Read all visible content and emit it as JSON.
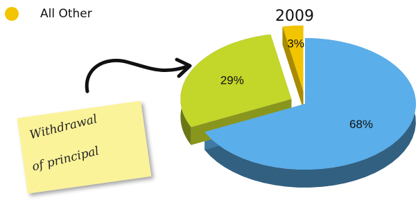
{
  "chart_data": {
    "type": "pie",
    "title": "2009",
    "categories": [
      null,
      null,
      "All Other"
    ],
    "values": [
      68,
      29,
      3
    ],
    "value_labels": [
      "68%",
      "29%",
      "3%"
    ],
    "colors": [
      "#5aaeea",
      "#c3d62a",
      "#f2c500"
    ],
    "annotation": [
      "Withdrawal",
      "of principal"
    ]
  }
}
